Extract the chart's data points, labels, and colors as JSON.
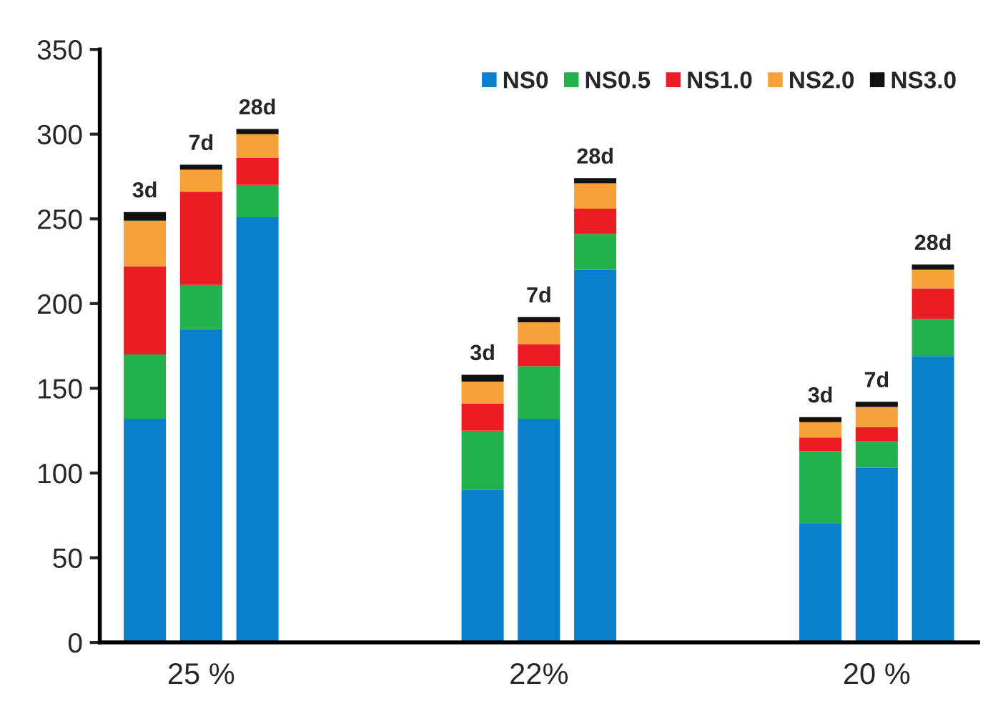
{
  "chart_data": {
    "type": "bar",
    "stacked": true,
    "categories": [
      "3d",
      "7d",
      "28d",
      null,
      null,
      null,
      "3d",
      "7d",
      "28d",
      null,
      null,
      null,
      "3d",
      "7d",
      "28d"
    ],
    "series": [
      {
        "name": "NS0",
        "color": "#0a7fcc",
        "values": [
          132,
          185,
          251,
          null,
          null,
          null,
          90,
          132,
          220,
          null,
          null,
          null,
          70,
          103,
          169
        ]
      },
      {
        "name": "NS0.5",
        "color": "#22b14c",
        "values": [
          38,
          26,
          19,
          null,
          null,
          null,
          35,
          31,
          21,
          null,
          null,
          null,
          43,
          16,
          22
        ]
      },
      {
        "name": "NS1.0",
        "color": "#ed1c24",
        "values": [
          52,
          55,
          16,
          null,
          null,
          null,
          16,
          13,
          15,
          null,
          null,
          null,
          8,
          8,
          18
        ]
      },
      {
        "name": "NS2.0",
        "color": "#f7a13a",
        "values": [
          27,
          13,
          14,
          null,
          null,
          null,
          13,
          13,
          15,
          null,
          null,
          null,
          9,
          12,
          11
        ]
      },
      {
        "name": "NS3.0",
        "color": "#111111",
        "values": [
          5,
          3,
          3,
          null,
          null,
          null,
          4,
          3,
          3,
          null,
          null,
          null,
          3,
          3,
          3
        ]
      }
    ],
    "annotations": [
      "25 %",
      "22%",
      "20 %"
    ],
    "ylim": [
      0,
      350
    ],
    "yticks": [
      0,
      50,
      100,
      150,
      200,
      250,
      300,
      350
    ],
    "legend": "top right",
    "grid": false
  }
}
